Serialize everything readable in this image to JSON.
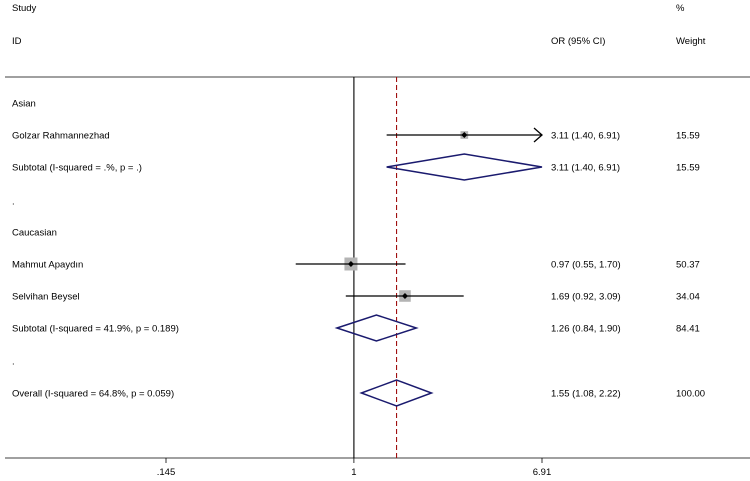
{
  "chart_data": {
    "type": "forest",
    "headers": {
      "study_line1": "Study",
      "study_line2": "ID",
      "effect": "OR (95% CI)",
      "weight_line1": "%",
      "weight_line2": "Weight"
    },
    "rows": [
      {
        "kind": "group",
        "label": "Asian"
      },
      {
        "kind": "study",
        "label": "Golzar Rahmannezhad",
        "or": 3.11,
        "lo": 1.4,
        "hi": 6.91,
        "weight": 15.59,
        "ci_text": "3.11 (1.40, 6.91)",
        "weight_text": "15.59",
        "arrow_right": true
      },
      {
        "kind": "subtotal",
        "label": "Subtotal  (I-squared = .%, p = .)",
        "or": 3.11,
        "lo": 1.4,
        "hi": 6.91,
        "ci_text": "3.11 (1.40, 6.91)",
        "weight_text": "15.59"
      },
      {
        "kind": "spacer",
        "label": "."
      },
      {
        "kind": "group",
        "label": "Caucasian"
      },
      {
        "kind": "study",
        "label": "Mahmut Apaydın",
        "or": 0.97,
        "lo": 0.55,
        "hi": 1.7,
        "weight": 50.37,
        "ci_text": "0.97 (0.55, 1.70)",
        "weight_text": "50.37"
      },
      {
        "kind": "study",
        "label": "Selvihan Beysel",
        "or": 1.69,
        "lo": 0.92,
        "hi": 3.09,
        "weight": 34.04,
        "ci_text": "1.69 (0.92, 3.09)",
        "weight_text": "34.04"
      },
      {
        "kind": "subtotal",
        "label": "Subtotal  (I-squared = 41.9%, p = 0.189)",
        "or": 1.26,
        "lo": 0.84,
        "hi": 1.9,
        "ci_text": "1.26 (0.84, 1.90)",
        "weight_text": "84.41"
      },
      {
        "kind": "spacer",
        "label": "."
      },
      {
        "kind": "overall",
        "label": "Overall  (I-squared = 64.8%, p = 0.059)",
        "or": 1.55,
        "lo": 1.08,
        "hi": 2.22,
        "ci_text": "1.55 (1.08, 2.22)",
        "weight_text": "100.00"
      }
    ],
    "x_scale": "log",
    "x_ticks": [
      0.145,
      1,
      6.91
    ],
    "x_tick_labels": [
      ".145",
      "1",
      "6.91"
    ],
    "xlim": [
      0.145,
      6.91
    ],
    "null_line": 1,
    "overall_line": 1.55,
    "colors": {
      "diamond": "#1a1a6e",
      "overall_line": "#a01010",
      "marker_box": "#b4b4b4",
      "lines": "#000000"
    }
  }
}
